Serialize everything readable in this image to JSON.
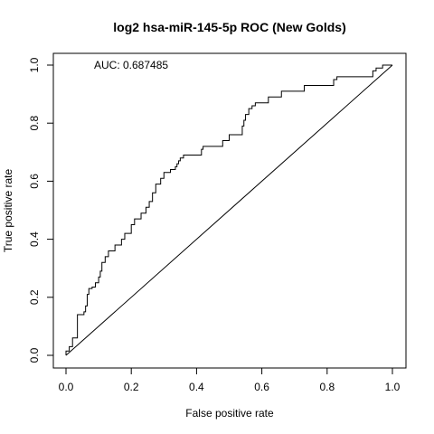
{
  "chart_data": {
    "type": "line",
    "title": "log2 hsa-miR-145-5p ROC (New Golds)",
    "xlabel": "False positive rate",
    "ylabel": "True positive rate",
    "xlim": [
      0,
      1
    ],
    "ylim": [
      0,
      1
    ],
    "xticks": [
      "0.0",
      "0.2",
      "0.4",
      "0.6",
      "0.8",
      "1.0"
    ],
    "yticks": [
      "0.0",
      "0.2",
      "0.4",
      "0.6",
      "0.8",
      "1.0"
    ],
    "grid": false,
    "legend": "none",
    "annotation": "AUC: 0.687485",
    "series": [
      {
        "style": "step",
        "color": "#000000",
        "x": [
          0.0,
          0.0,
          0.01,
          0.01,
          0.02,
          0.02,
          0.035,
          0.035,
          0.055,
          0.055,
          0.06,
          0.06,
          0.065,
          0.065,
          0.07,
          0.07,
          0.08,
          0.08,
          0.09,
          0.09,
          0.1,
          0.1,
          0.105,
          0.105,
          0.11,
          0.11,
          0.12,
          0.12,
          0.13,
          0.13,
          0.15,
          0.15,
          0.17,
          0.17,
          0.18,
          0.18,
          0.2,
          0.2,
          0.21,
          0.21,
          0.23,
          0.23,
          0.245,
          0.245,
          0.255,
          0.255,
          0.265,
          0.265,
          0.275,
          0.275,
          0.29,
          0.29,
          0.3,
          0.3,
          0.32,
          0.32,
          0.335,
          0.335,
          0.34,
          0.34,
          0.345,
          0.345,
          0.35,
          0.35,
          0.36,
          0.36,
          0.415,
          0.415,
          0.42,
          0.42,
          0.48,
          0.48,
          0.5,
          0.5,
          0.54,
          0.54,
          0.545,
          0.545,
          0.55,
          0.55,
          0.56,
          0.56,
          0.57,
          0.57,
          0.58,
          0.58,
          0.62,
          0.62,
          0.66,
          0.66,
          0.73,
          0.73,
          0.82,
          0.82,
          0.83,
          0.83,
          0.94,
          0.94,
          0.95,
          0.95,
          0.97,
          0.97,
          1.0
        ],
        "y": [
          0.0,
          0.015,
          0.015,
          0.03,
          0.03,
          0.06,
          0.06,
          0.14,
          0.14,
          0.15,
          0.15,
          0.17,
          0.17,
          0.21,
          0.21,
          0.23,
          0.23,
          0.235,
          0.235,
          0.25,
          0.25,
          0.27,
          0.27,
          0.29,
          0.29,
          0.32,
          0.32,
          0.34,
          0.34,
          0.36,
          0.36,
          0.38,
          0.38,
          0.4,
          0.4,
          0.42,
          0.42,
          0.45,
          0.45,
          0.47,
          0.47,
          0.49,
          0.49,
          0.51,
          0.51,
          0.53,
          0.53,
          0.56,
          0.56,
          0.59,
          0.59,
          0.61,
          0.61,
          0.63,
          0.63,
          0.64,
          0.64,
          0.65,
          0.65,
          0.66,
          0.66,
          0.67,
          0.67,
          0.68,
          0.68,
          0.69,
          0.69,
          0.71,
          0.71,
          0.72,
          0.72,
          0.74,
          0.74,
          0.76,
          0.76,
          0.79,
          0.79,
          0.81,
          0.81,
          0.83,
          0.83,
          0.85,
          0.85,
          0.86,
          0.86,
          0.87,
          0.87,
          0.89,
          0.89,
          0.91,
          0.91,
          0.93,
          0.93,
          0.95,
          0.95,
          0.96,
          0.96,
          0.98,
          0.98,
          0.99,
          0.99,
          1.0,
          1.0
        ]
      },
      {
        "style": "diagonal",
        "color": "#000000",
        "x": [
          0,
          1
        ],
        "y": [
          0,
          1
        ]
      }
    ]
  }
}
